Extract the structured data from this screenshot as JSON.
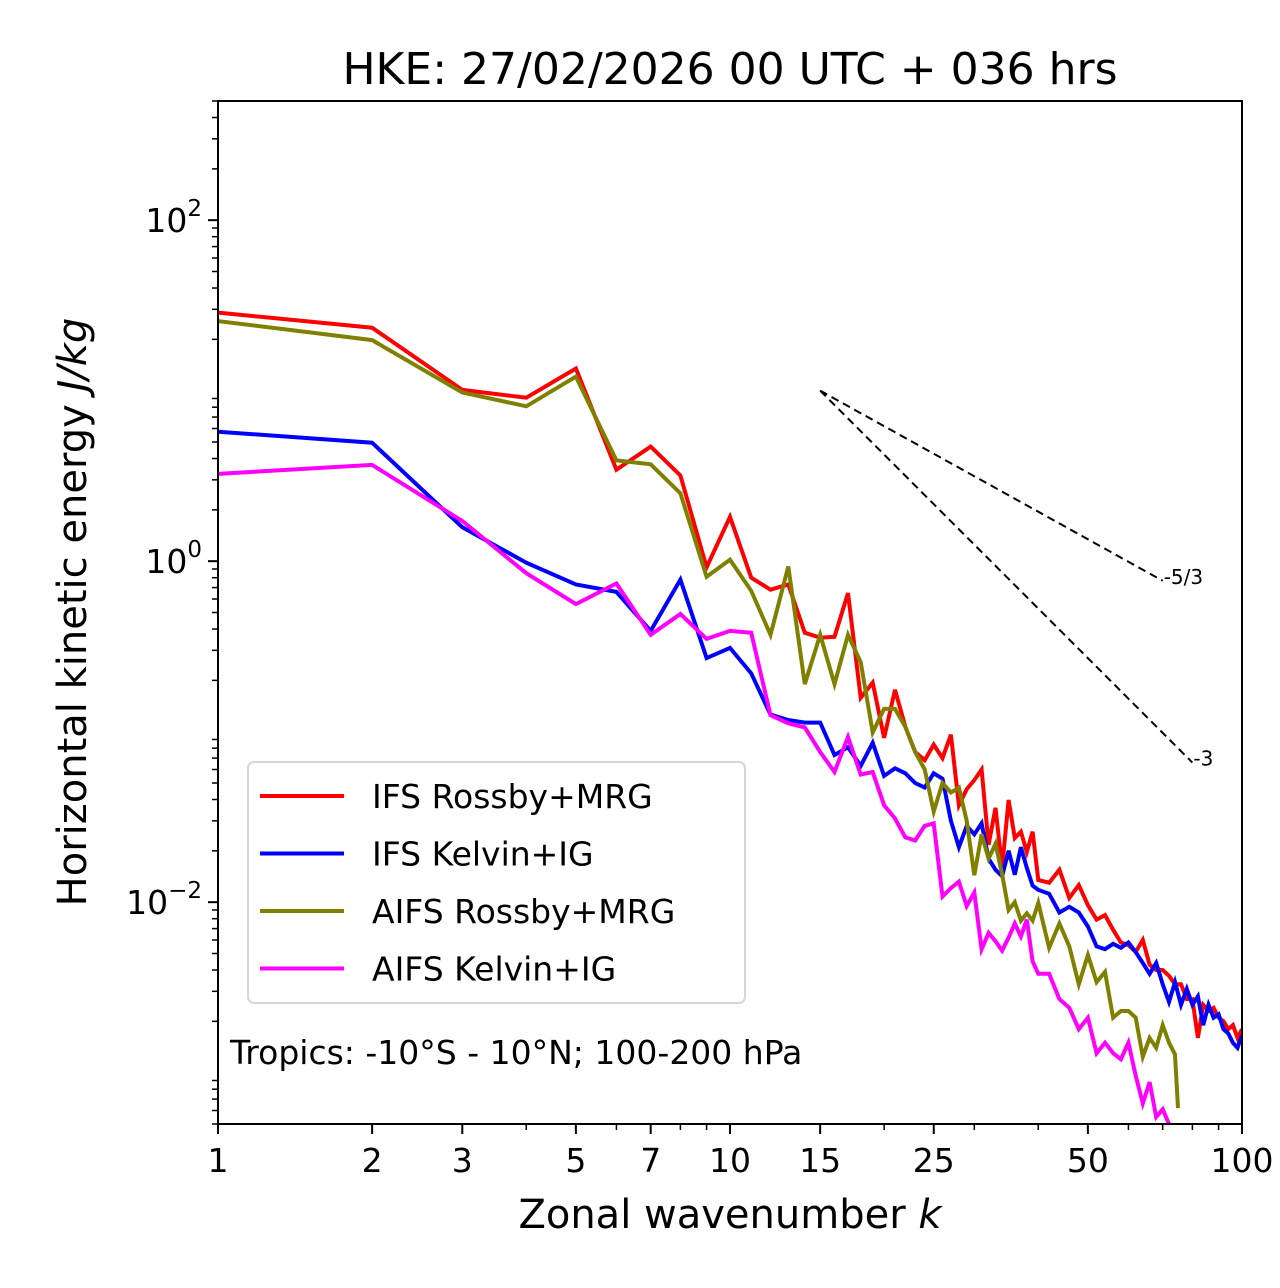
{
  "chart_data": {
    "type": "line",
    "title": "HKE: 27/02/2026 00 UTC + 036 hrs",
    "xlabel": "Zonal wavenumber",
    "xlabel_var": "k",
    "ylabel": "Horizontal kinetic energy",
    "ylabel_unit": "J/kg",
    "xscale": "log",
    "yscale": "log",
    "xlim": [
      1,
      100
    ],
    "ylim": [
      0.0005,
      500
    ],
    "x_ticks": [
      1,
      2,
      3,
      5,
      7,
      10,
      15,
      25,
      50,
      100
    ],
    "x_tick_labels": [
      "1",
      "2",
      "3",
      "5",
      "7",
      "10",
      "15",
      "25",
      "50",
      "100"
    ],
    "x_minor_ticks": [
      4,
      6,
      8,
      9,
      20,
      30,
      40,
      60,
      70,
      80,
      90
    ],
    "y_ticks": [
      100,
      1,
      0.01
    ],
    "y_tick_labels": [
      {
        "base": "10",
        "exp": "2"
      },
      {
        "base": "10",
        "exp": "0"
      },
      {
        "base": "10",
        "exp": "−2"
      }
    ],
    "grid": false,
    "legend_position": "lower-left",
    "annotation": "Tropics: -10°S - 10°N; 100-200 hPa",
    "reference_lines": [
      {
        "label": "-5/3",
        "slope": -1.6667,
        "k_start": 15,
        "k_end": 70,
        "e_start": 10,
        "style": "dashed",
        "color": "#000000"
      },
      {
        "label": "-3",
        "slope": -3,
        "k_start": 15,
        "k_end": 80,
        "e_start": 10,
        "style": "dashed",
        "color": "#000000"
      }
    ],
    "series": [
      {
        "name": "IFS Rossby+MRG",
        "color": "#ff0000",
        "k": [
          1,
          2,
          3,
          4,
          5,
          6,
          7,
          8,
          9,
          10,
          11,
          12,
          13,
          14,
          15,
          16,
          17,
          18,
          19,
          20,
          21,
          22,
          23,
          24,
          25,
          26,
          27,
          28,
          29,
          30,
          31,
          32,
          33,
          34,
          35,
          36,
          37,
          38,
          39,
          40,
          42,
          44,
          46,
          48,
          50,
          52,
          54,
          56,
          58,
          60,
          62,
          64,
          66,
          68,
          70,
          72,
          74,
          76,
          78,
          80,
          82,
          84,
          86,
          88,
          90,
          92,
          94,
          96,
          98,
          100
        ],
        "values": [
          28.7,
          23.4,
          10.1,
          9.1,
          13.5,
          3.44,
          4.7,
          3.18,
          0.92,
          1.82,
          0.8,
          0.68,
          0.73,
          0.38,
          0.356,
          0.36,
          0.65,
          0.158,
          0.194,
          0.092,
          0.176,
          0.107,
          0.076,
          0.068,
          0.084,
          0.07,
          0.096,
          0.037,
          0.046,
          0.052,
          0.06,
          0.0217,
          0.0357,
          0.0159,
          0.0398,
          0.0238,
          0.0259,
          0.0197,
          0.0259,
          0.0135,
          0.013,
          0.0155,
          0.0106,
          0.0126,
          0.0096,
          0.0079,
          0.0084,
          0.0069,
          0.0058,
          0.0056,
          0.0051,
          0.006,
          0.0043,
          0.004,
          0.004,
          0.0037,
          0.0033,
          0.0033,
          0.0027,
          0.0027,
          0.0016,
          0.0025,
          0.0023,
          0.0024,
          0.0021,
          0.002,
          0.0018,
          0.0019,
          0.0016,
          0.0018
        ]
      },
      {
        "name": "IFS Kelvin+IG",
        "color": "#0000ff",
        "k": [
          1,
          2,
          3,
          4,
          5,
          6,
          7,
          8,
          9,
          10,
          11,
          12,
          13,
          14,
          15,
          16,
          17,
          18,
          19,
          20,
          21,
          22,
          23,
          24,
          25,
          26,
          27,
          28,
          29,
          30,
          31,
          32,
          33,
          34,
          35,
          36,
          37,
          38,
          39,
          40,
          42,
          44,
          46,
          48,
          50,
          52,
          54,
          56,
          58,
          60,
          62,
          64,
          66,
          68,
          70,
          72,
          74,
          76,
          78,
          80,
          82,
          84,
          86,
          88,
          90,
          92,
          94,
          96,
          98,
          100
        ],
        "values": [
          5.75,
          4.95,
          1.58,
          0.98,
          0.73,
          0.66,
          0.39,
          0.78,
          0.27,
          0.31,
          0.22,
          0.126,
          0.117,
          0.113,
          0.113,
          0.073,
          0.081,
          0.063,
          0.086,
          0.055,
          0.061,
          0.057,
          0.05,
          0.047,
          0.057,
          0.053,
          0.03,
          0.021,
          0.028,
          0.025,
          0.029,
          0.018,
          0.0155,
          0.0142,
          0.02,
          0.0145,
          0.021,
          0.0159,
          0.0125,
          0.0118,
          0.0112,
          0.0087,
          0.0094,
          0.0087,
          0.0072,
          0.0055,
          0.0053,
          0.0057,
          0.0054,
          0.0058,
          0.0051,
          0.0044,
          0.0038,
          0.0044,
          0.0033,
          0.0026,
          0.0034,
          0.0025,
          0.0031,
          0.0025,
          0.0028,
          0.0019,
          0.0025,
          0.0021,
          0.0022,
          0.0018,
          0.0017,
          0.0015,
          0.0014,
          0.00166
        ]
      },
      {
        "name": "AIFS Rossby+MRG",
        "color": "#808000",
        "k": [
          1,
          2,
          3,
          4,
          5,
          6,
          7,
          8,
          9,
          10,
          11,
          12,
          13,
          14,
          15,
          16,
          17,
          18,
          19,
          20,
          21,
          22,
          23,
          24,
          25,
          26,
          27,
          28,
          29,
          30,
          31,
          32,
          33,
          34,
          35,
          36,
          37,
          38,
          39,
          40,
          42,
          44,
          46,
          48,
          50,
          52,
          54,
          56,
          58,
          60,
          62,
          64,
          66,
          68,
          70,
          72,
          74,
          75
        ],
        "values": [
          25.6,
          19.8,
          9.75,
          8.1,
          12.1,
          3.9,
          3.7,
          2.5,
          0.81,
          1.02,
          0.67,
          0.37,
          0.93,
          0.19,
          0.37,
          0.19,
          0.37,
          0.256,
          0.099,
          0.136,
          0.136,
          0.107,
          0.076,
          0.06,
          0.034,
          0.05,
          0.044,
          0.047,
          0.03,
          0.0144,
          0.025,
          0.018,
          0.022,
          0.0146,
          0.009,
          0.01,
          0.0078,
          0.0086,
          0.0078,
          0.0099,
          0.0054,
          0.0075,
          0.0055,
          0.0033,
          0.0049,
          0.0034,
          0.0039,
          0.0021,
          0.0023,
          0.0023,
          0.0021,
          0.00124,
          0.0016,
          0.0014,
          0.0019,
          0.0015,
          0.00128,
          0.00062
        ]
      },
      {
        "name": "AIFS Kelvin+IG",
        "color": "#ff00ff",
        "k": [
          1,
          2,
          3,
          4,
          5,
          6,
          7,
          8,
          9,
          10,
          11,
          12,
          13,
          14,
          15,
          16,
          17,
          18,
          19,
          20,
          21,
          22,
          23,
          24,
          25,
          26,
          27,
          28,
          29,
          30,
          31,
          32,
          33,
          34,
          35,
          36,
          37,
          38,
          39,
          40,
          42,
          44,
          46,
          48,
          50,
          52,
          54,
          56,
          58,
          60,
          62,
          64,
          66,
          68,
          70,
          72
        ],
        "values": [
          3.25,
          3.67,
          1.72,
          0.85,
          0.56,
          0.74,
          0.37,
          0.49,
          0.35,
          0.39,
          0.38,
          0.125,
          0.112,
          0.106,
          0.076,
          0.058,
          0.093,
          0.056,
          0.058,
          0.037,
          0.031,
          0.024,
          0.023,
          0.028,
          0.029,
          0.0108,
          0.0121,
          0.0132,
          0.0095,
          0.0114,
          0.0053,
          0.0066,
          0.0059,
          0.0052,
          0.0062,
          0.0075,
          0.0063,
          0.0079,
          0.0045,
          0.0038,
          0.0038,
          0.0027,
          0.0024,
          0.0018,
          0.0021,
          0.0013,
          0.0015,
          0.0013,
          0.0012,
          0.0015,
          0.00096,
          0.00066,
          0.00088,
          0.00055,
          0.00061,
          0.0005
        ]
      }
    ]
  }
}
